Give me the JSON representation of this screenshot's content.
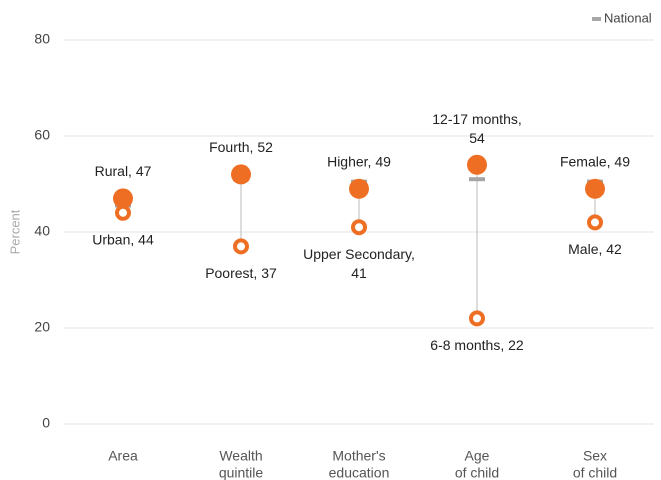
{
  "chart_data": {
    "type": "dot-range",
    "categories": [
      [
        "Area"
      ],
      [
        "Wealth",
        "quintile"
      ],
      [
        "Mother's",
        "education"
      ],
      [
        "Age",
        "of child"
      ],
      [
        "Sex",
        "of child"
      ]
    ],
    "y_label": "Percent",
    "ylim": [
      0,
      80
    ],
    "yticks": [
      0,
      20,
      40,
      60,
      80
    ],
    "grid": true,
    "legend": "top-right",
    "series": [
      {
        "color": "#ee6f24",
        "marker": "filled",
        "values": [
          47,
          52,
          49,
          54,
          49
        ],
        "value_labels": [
          "Rural, 47",
          "Fourth, 52",
          "Higher, 49",
          "12-17 months, 54",
          "Female, 49"
        ]
      },
      {
        "color": "#ee6f24",
        "marker": "hollow",
        "values": [
          44,
          37,
          41,
          22,
          42
        ],
        "value_labels": [
          "Urban, 44",
          "Poorest, 37",
          "Upper Secondary, 41",
          "6-8 months, 22",
          "Male, 42"
        ]
      },
      {
        "name": "National",
        "color": "#a6a6a6",
        "marker": "dash",
        "values": [
          45.5,
          51,
          50.5,
          51,
          50.5
        ]
      }
    ]
  }
}
